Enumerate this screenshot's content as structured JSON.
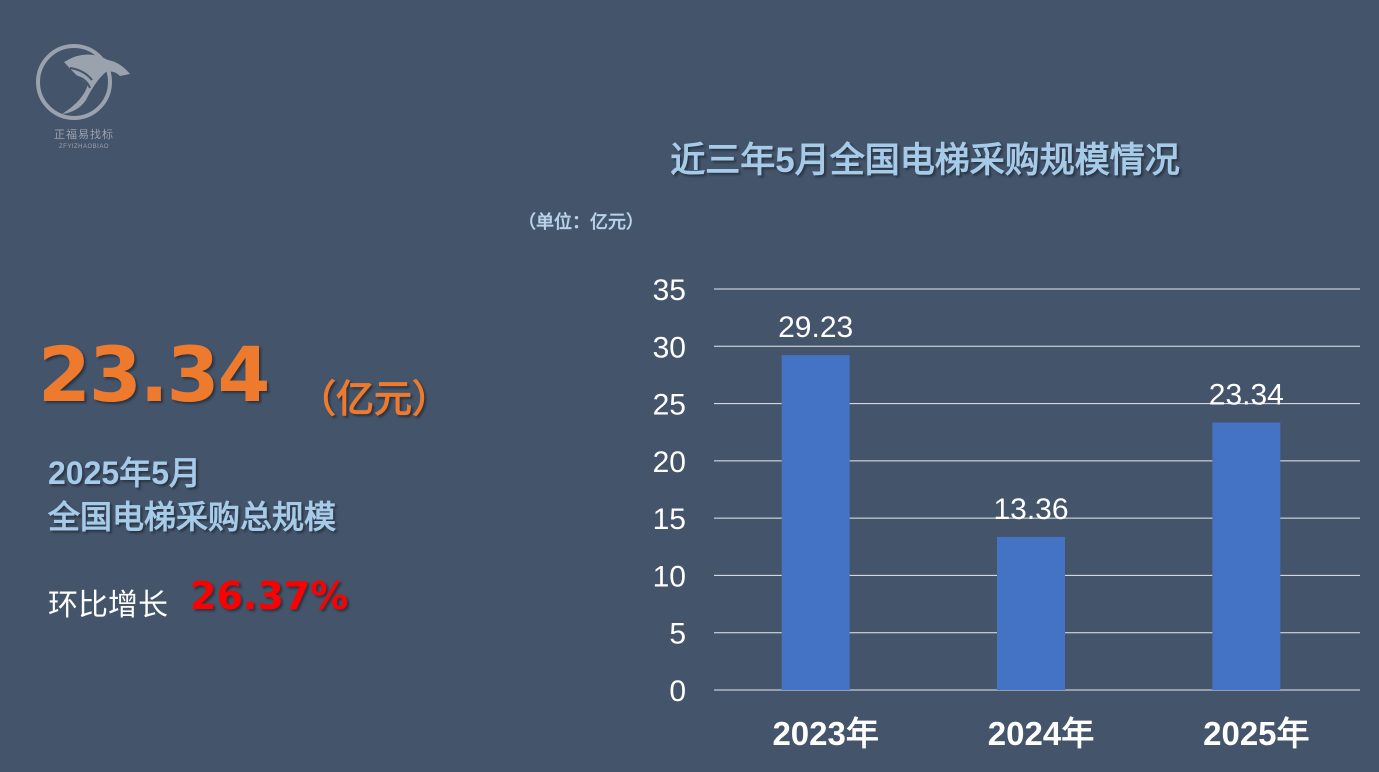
{
  "logo": {
    "name_cn": "正福易找标",
    "name_en": "ZFYIZHAOBIAO"
  },
  "summary": {
    "value": "23.34",
    "unit": "（亿元）",
    "line1": "2025年5月",
    "line2": "全国电梯采购总规模",
    "growth_label": "环比增长",
    "growth_value": "26.37%"
  },
  "colors": {
    "background": "#44546a",
    "bar": "#4472c4",
    "highlight": "#ee7a2e",
    "growth": "#ff0000",
    "title": "#a6cbe8"
  },
  "chart_data": {
    "type": "bar",
    "title": "近三年5月全国电梯采购规模情况",
    "unit_label": "（单位：亿元）",
    "categories": [
      "2023年",
      "2024年",
      "2025年"
    ],
    "values": [
      29.23,
      13.36,
      23.34
    ],
    "value_labels": [
      "29.23",
      "13.36",
      "23.34"
    ],
    "ylim": [
      0,
      35
    ],
    "yticks": [
      0,
      5,
      10,
      15,
      20,
      25,
      30,
      35
    ],
    "grid": true,
    "legend": "none",
    "xlabel": "",
    "ylabel": ""
  }
}
